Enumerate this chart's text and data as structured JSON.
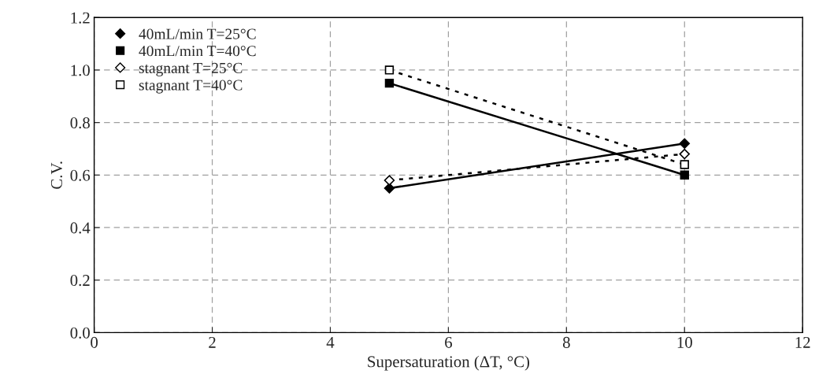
{
  "chart_data": {
    "type": "line",
    "xlabel": "Supersaturation (ΔT, °C)",
    "ylabel": "C.V.",
    "x": [
      5,
      10
    ],
    "series": [
      {
        "name": "40mL/min T=25°C",
        "color": "#000000",
        "values": [
          0.55,
          0.72
        ],
        "marker": "diamond",
        "line_style": "solid"
      },
      {
        "name": "40mL/min T=40°C",
        "color": "#000000",
        "values": [
          0.95,
          0.6
        ],
        "marker": "square",
        "line_style": "solid"
      },
      {
        "name": "stagnant T=25°C",
        "color": "#000000",
        "values": [
          0.58,
          0.68
        ],
        "marker": "diamond",
        "line_style": "dotted"
      },
      {
        "name": "stagnant T=40°C",
        "color": "#000000",
        "values": [
          1.0,
          0.64
        ],
        "marker": "square",
        "line_style": "dotted"
      }
    ],
    "xlim": [
      0,
      12
    ],
    "xticks": [
      0,
      2,
      4,
      6,
      8,
      10,
      12
    ],
    "ylim": [
      0,
      1.2
    ],
    "yticks": [
      {
        "value": 0,
        "label": "0.0"
      },
      {
        "value": 0.2,
        "label": "0.2"
      },
      {
        "value": 0.4,
        "label": "0.4"
      },
      {
        "value": 0.6,
        "label": "0.6"
      },
      {
        "value": 0.8,
        "label": "0.8"
      },
      {
        "value": 1.0,
        "label": "1.0"
      },
      {
        "value": 1.2,
        "label": "1.2"
      }
    ],
    "grid": true,
    "legend": "top left"
  }
}
